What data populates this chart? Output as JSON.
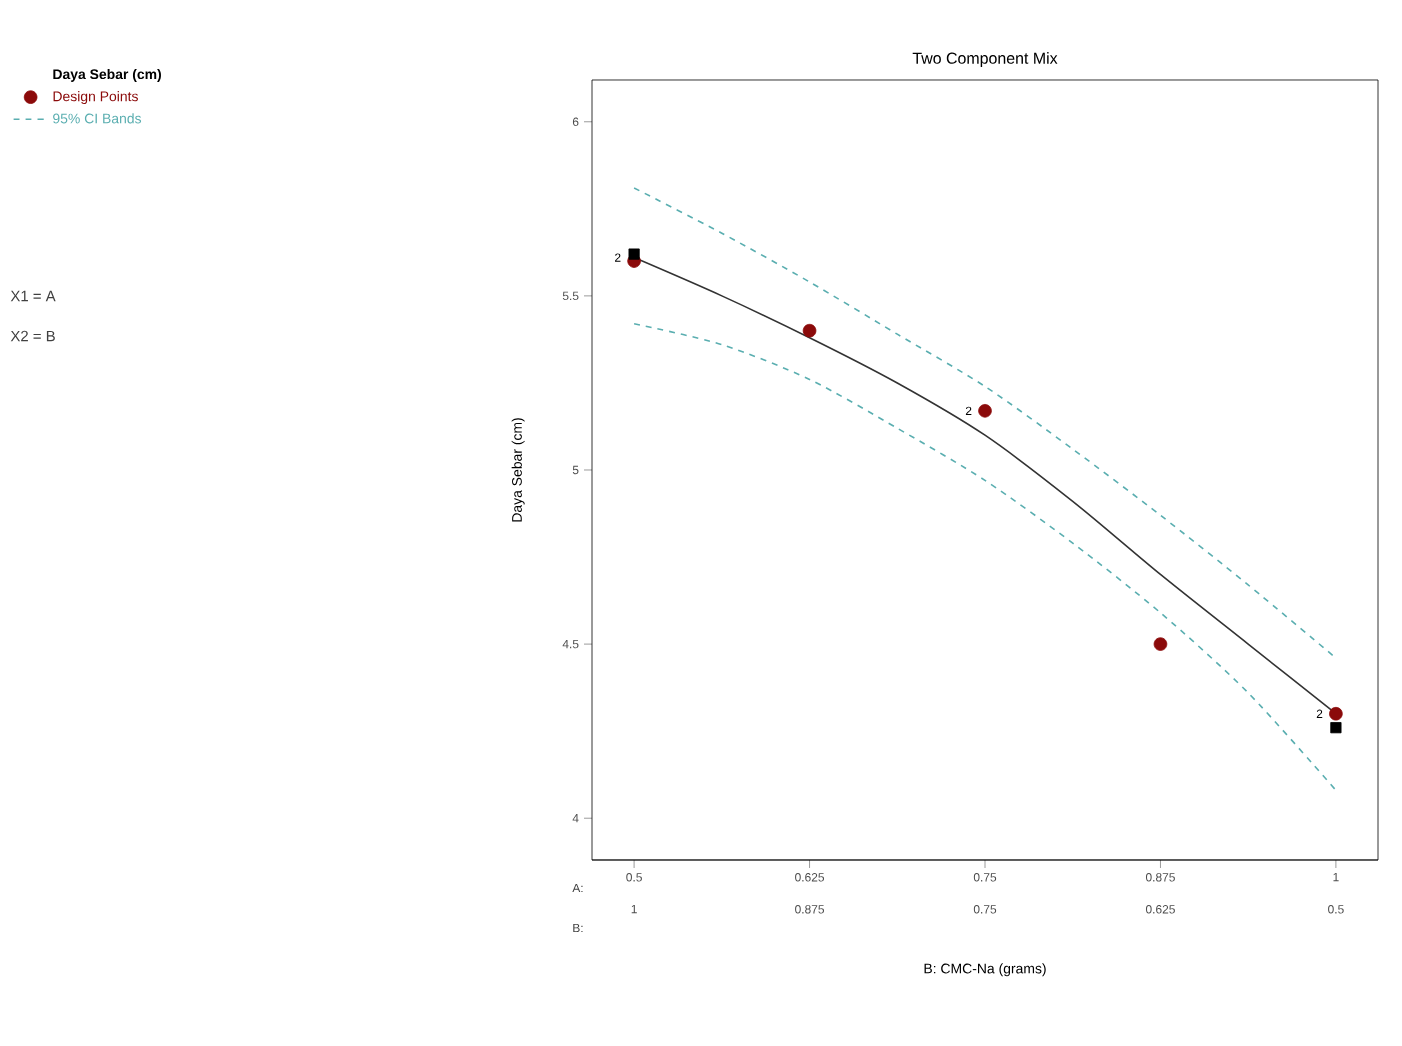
{
  "chart_data": {
    "type": "scatter",
    "title": "Two Component Mix",
    "ylabel": "Daya Sebar (cm)",
    "x2label": "B: CMC-Na (grams)",
    "legend_title": "Daya Sebar (cm)",
    "legend": "top left",
    "grid": false,
    "xlim": [
      0.47,
      1.03
    ],
    "xticks": [
      0.5,
      0.625,
      0.75,
      0.875,
      1
    ],
    "x2lim": [
      1.03,
      0.47
    ],
    "x2ticks": [
      1,
      0.875,
      0.75,
      0.625,
      0.5
    ],
    "ylim": [
      3.88,
      6.12
    ],
    "yticks": [
      4,
      4.5,
      5,
      5.5,
      6
    ],
    "annotations": [
      "X1 = A",
      "X2 = B",
      "A:",
      "B:",
      {
        "text": "2",
        "x": 0.5,
        "y": 5.61
      },
      {
        "text": "2",
        "x": 0.75,
        "y": 5.17
      },
      {
        "text": "2",
        "x": 1,
        "y": 4.3
      }
    ],
    "series": [
      {
        "name": "Design Points",
        "marker": "circle",
        "color": "#8b0a0a",
        "x": [
          0.5,
          0.625,
          0.75,
          0.875,
          1
        ],
        "values": [
          5.6,
          5.4,
          5.17,
          4.5,
          4.3
        ]
      },
      {
        "marker": "square",
        "color": "#000000",
        "x": [
          0.5,
          1
        ],
        "values": [
          5.62,
          4.26
        ]
      },
      {
        "type": "line",
        "marker": "none",
        "line_style": "solid",
        "color": "#333333",
        "x": [
          0.5,
          0.5625,
          0.625,
          0.6875,
          0.75,
          0.8125,
          0.875,
          0.9375,
          1
        ],
        "values": [
          5.61,
          5.5,
          5.38,
          5.25,
          5.1,
          4.91,
          4.7,
          4.5,
          4.3
        ]
      },
      {
        "name": "95% CI Bands",
        "type": "line",
        "marker": "none",
        "line_style": "dashed",
        "color": "#5aaeb0",
        "x": [
          0.5,
          0.5625,
          0.625,
          0.6875,
          0.75,
          0.8125,
          0.875,
          0.9375,
          1
        ],
        "values": [
          5.81,
          5.68,
          5.54,
          5.39,
          5.24,
          5.06,
          4.87,
          4.67,
          4.46
        ]
      },
      {
        "type": "line",
        "marker": "none",
        "line_style": "dashed",
        "color": "#5aaeb0",
        "x": [
          0.5,
          0.5625,
          0.625,
          0.6875,
          0.75,
          0.8125,
          0.875,
          0.9375,
          1
        ],
        "values": [
          5.42,
          5.36,
          5.26,
          5.12,
          4.97,
          4.79,
          4.59,
          4.36,
          4.08
        ]
      }
    ]
  }
}
